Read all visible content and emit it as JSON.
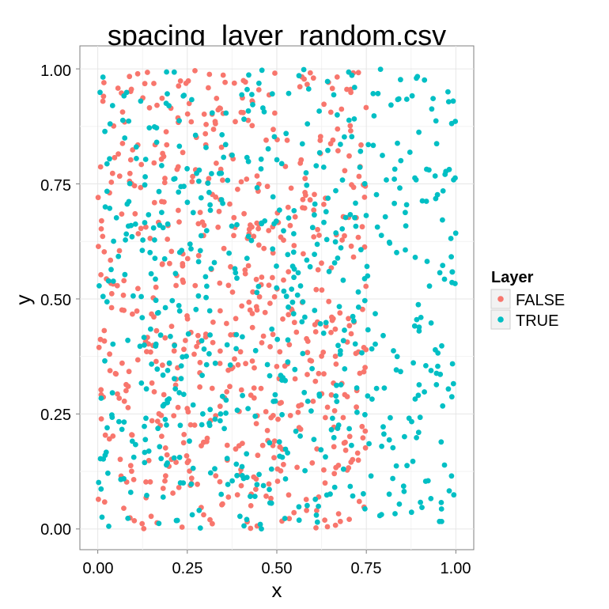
{
  "chart_data": {
    "type": "scatter",
    "title": "spacing_layer_random.csv",
    "xlabel": "x",
    "ylabel": "y",
    "xlim": [
      -0.05,
      1.05
    ],
    "ylim": [
      -0.045,
      1.05
    ],
    "x_ticks": [
      "0.00",
      "0.25",
      "0.50",
      "0.75",
      "1.00"
    ],
    "y_ticks": [
      "0.00",
      "0.25",
      "0.50",
      "0.75",
      "1.00"
    ],
    "grid": true,
    "legend": {
      "title": "Layer",
      "position": "right"
    },
    "series": [
      {
        "name": "FALSE",
        "color": "#F8766D",
        "point_count": 620,
        "x_range": [
          0.0,
          0.75
        ],
        "y_range": [
          0.0,
          1.0
        ]
      },
      {
        "name": "TRUE",
        "color": "#00BFC4",
        "point_count": 630,
        "x_range": [
          0.0,
          1.0
        ],
        "y_range": [
          0.0,
          1.0
        ]
      }
    ]
  }
}
